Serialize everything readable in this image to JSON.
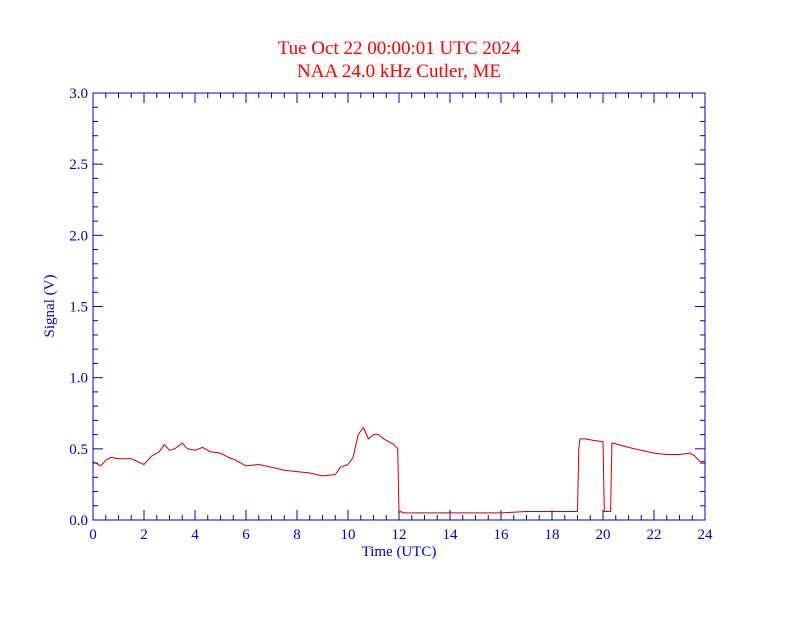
{
  "chart_data": {
    "type": "line",
    "title": "Tue Oct 22 00:00:01 UTC 2024",
    "subtitle": "NAA 24.0 kHz Cutler, ME",
    "xlabel": "Time (UTC)",
    "ylabel": "Signal (V)",
    "xlim": [
      0,
      24
    ],
    "ylim": [
      0,
      3
    ],
    "xticks": [
      0,
      2,
      4,
      6,
      8,
      10,
      12,
      14,
      16,
      18,
      20,
      22,
      24
    ],
    "xtick_labels": [
      "0",
      "2",
      "4",
      "6",
      "8",
      "10",
      "12",
      "14",
      "16",
      "18",
      "20",
      "22",
      "24"
    ],
    "yticks": [
      0,
      0.5,
      1,
      1.5,
      2,
      2.5,
      3
    ],
    "ytick_labels": [
      "0.0",
      "0.5",
      "1.0",
      "1.5",
      "2.0",
      "2.5",
      "3.0"
    ],
    "grid": false,
    "colors": {
      "title": "#ff0000",
      "series": "#cc0000",
      "axes": "#0000cc"
    },
    "series": [
      {
        "x": [
          0,
          0.3,
          0.5,
          0.7,
          1.0,
          1.5,
          2.0,
          2.3,
          2.6,
          2.8,
          3.0,
          3.2,
          3.5,
          3.7,
          4.0,
          4.3,
          4.6,
          5.0,
          5.3,
          5.6,
          6.0,
          6.5,
          7.0,
          7.5,
          8.0,
          8.5,
          9.0,
          9.5,
          9.7,
          10.0,
          10.2,
          10.4,
          10.6,
          10.8,
          11.0,
          11.2,
          11.4,
          11.6,
          11.8,
          11.95,
          12.0,
          12.05,
          12.2,
          12.5,
          13.0,
          14.0,
          15.0,
          16.0,
          17.0,
          18.0,
          18.9,
          19.0,
          19.05,
          19.1,
          19.3,
          19.6,
          20.0,
          20.05,
          20.1,
          20.2,
          20.3,
          20.35,
          20.4,
          20.6,
          21.0,
          21.5,
          22.0,
          22.5,
          23.0,
          23.4,
          23.6,
          23.8,
          24.0
        ],
        "y": [
          0.41,
          0.38,
          0.42,
          0.44,
          0.43,
          0.43,
          0.39,
          0.45,
          0.48,
          0.53,
          0.49,
          0.5,
          0.54,
          0.5,
          0.49,
          0.51,
          0.48,
          0.47,
          0.44,
          0.42,
          0.38,
          0.39,
          0.37,
          0.35,
          0.34,
          0.33,
          0.31,
          0.32,
          0.37,
          0.39,
          0.44,
          0.6,
          0.65,
          0.57,
          0.6,
          0.6,
          0.57,
          0.55,
          0.53,
          0.5,
          0.05,
          0.06,
          0.05,
          0.05,
          0.05,
          0.05,
          0.05,
          0.05,
          0.06,
          0.06,
          0.06,
          0.06,
          0.5,
          0.57,
          0.57,
          0.56,
          0.55,
          0.06,
          0.06,
          0.06,
          0.06,
          0.54,
          0.54,
          0.53,
          0.51,
          0.49,
          0.47,
          0.46,
          0.46,
          0.47,
          0.45,
          0.41,
          0.41
        ]
      }
    ]
  }
}
